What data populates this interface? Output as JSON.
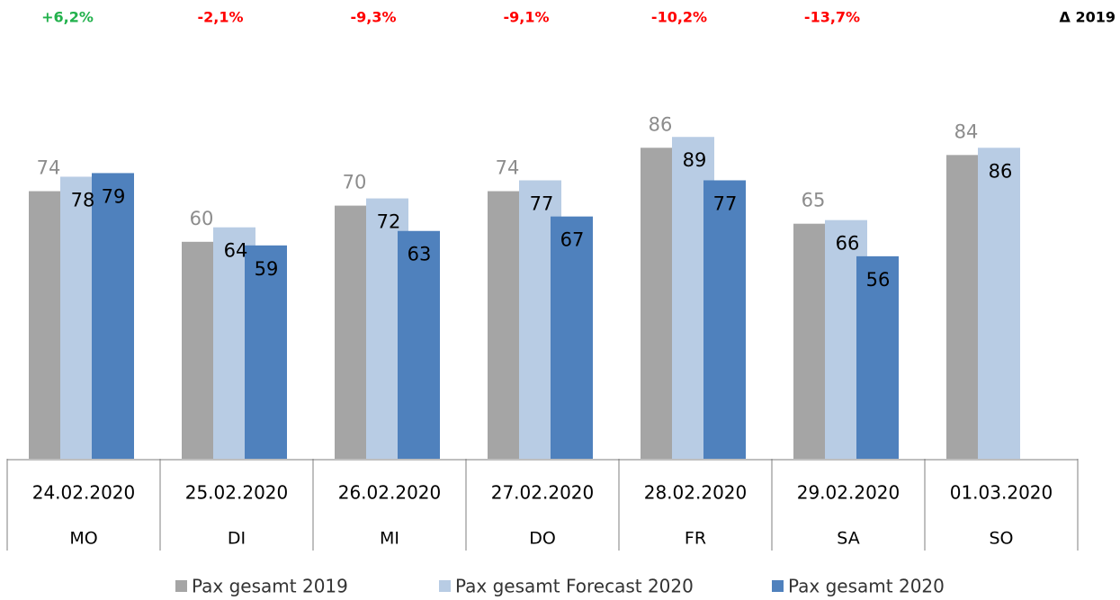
{
  "chart_data": {
    "type": "bar",
    "categories": [
      "24.02.2020",
      "25.02.2020",
      "26.02.2020",
      "27.02.2020",
      "28.02.2020",
      "29.02.2020",
      "01.03.2020"
    ],
    "weekdays": [
      "MO",
      "DI",
      "MI",
      "DO",
      "FR",
      "SA",
      "SO"
    ],
    "series": [
      {
        "name": "Pax gesamt 2019",
        "color": "#a5a5a5",
        "label_color": "#8c8c8c",
        "values": [
          74,
          60,
          70,
          74,
          86,
          65,
          84
        ]
      },
      {
        "name": "Pax gesamt Forecast 2020",
        "color": "#b8cce4",
        "label_color": "#000000",
        "values": [
          78,
          64,
          72,
          77,
          89,
          66,
          86
        ]
      },
      {
        "name": "Pax gesamt 2020",
        "color": "#4f81bd",
        "label_color": "#000000",
        "values": [
          79,
          59,
          63,
          67,
          77,
          56,
          null
        ]
      }
    ],
    "delta_labels": [
      "+6,2%",
      "-2,1%",
      "-9,3%",
      "-9,1%",
      "-10,2%",
      "-13,7%"
    ],
    "delta_colors": [
      "#22b14c",
      "#ff0000",
      "#ff0000",
      "#ff0000",
      "#ff0000",
      "#ff0000"
    ],
    "delta_title": "Δ 2019",
    "ylim": [
      0,
      100
    ]
  }
}
